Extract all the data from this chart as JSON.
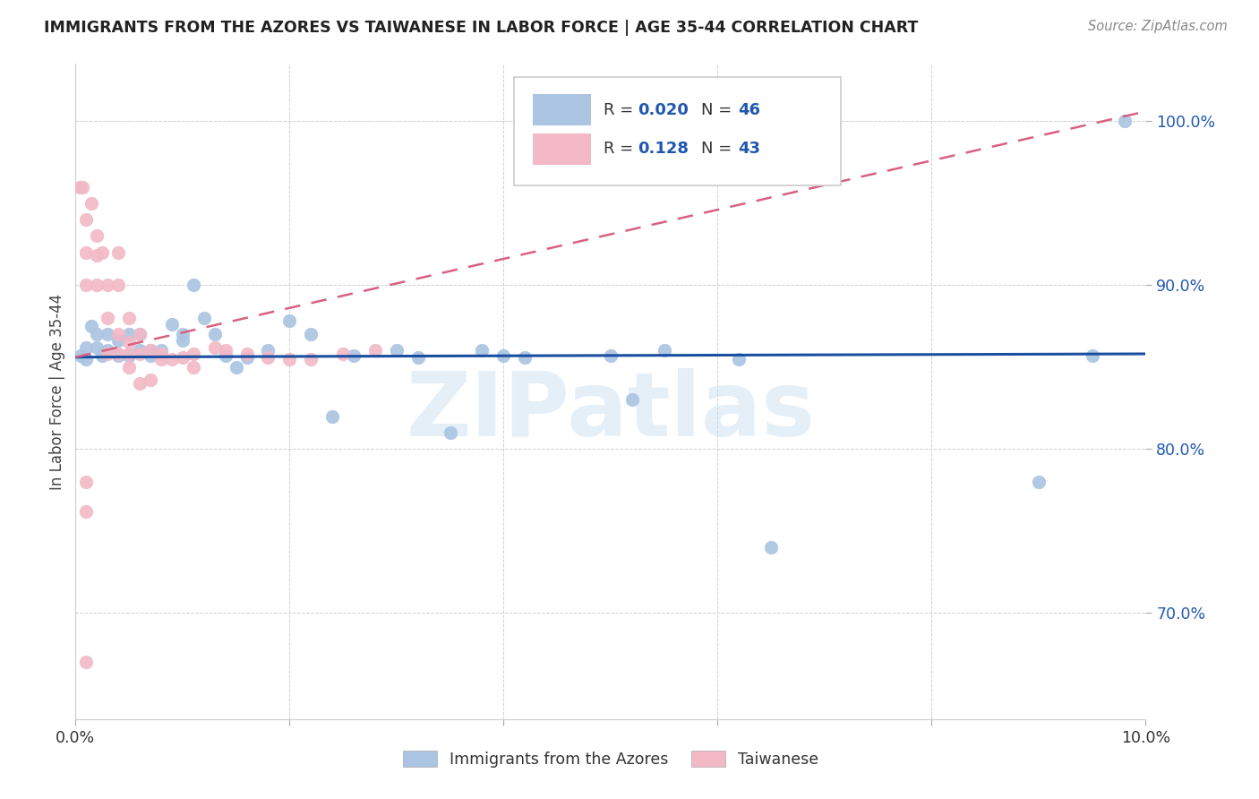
{
  "title": "IMMIGRANTS FROM THE AZORES VS TAIWANESE IN LABOR FORCE | AGE 35-44 CORRELATION CHART",
  "source": "Source: ZipAtlas.com",
  "ylabel": "In Labor Force | Age 35-44",
  "xlim": [
    0.0,
    0.1
  ],
  "ylim": [
    0.635,
    1.035
  ],
  "yticks": [
    0.7,
    0.8,
    0.9,
    1.0
  ],
  "ytick_labels": [
    "70.0%",
    "80.0%",
    "90.0%",
    "100.0%"
  ],
  "xticks": [
    0.0,
    0.02,
    0.04,
    0.06,
    0.08,
    0.1
  ],
  "xtick_labels": [
    "0.0%",
    "",
    "",
    "",
    "",
    "10.0%"
  ],
  "legend_azores_R": "0.020",
  "legend_azores_N": "46",
  "legend_taiwanese_R": "0.128",
  "legend_taiwanese_N": "43",
  "azores_color": "#aac4e2",
  "taiwanese_color": "#f2b8c6",
  "azores_line_color": "#1a4fa0",
  "taiwanese_line_color": "#d96080",
  "azores_x": [
    0.0005,
    0.001,
    0.001,
    0.0015,
    0.002,
    0.002,
    0.0025,
    0.003,
    0.003,
    0.004,
    0.004,
    0.005,
    0.005,
    0.006,
    0.006,
    0.007,
    0.007,
    0.008,
    0.009,
    0.01,
    0.01,
    0.011,
    0.012,
    0.013,
    0.014,
    0.015,
    0.016,
    0.018,
    0.02,
    0.022,
    0.024,
    0.026,
    0.03,
    0.032,
    0.035,
    0.038,
    0.04,
    0.042,
    0.05,
    0.052,
    0.055,
    0.062,
    0.065,
    0.09,
    0.095,
    0.098
  ],
  "azores_y": [
    0.857,
    0.862,
    0.855,
    0.875,
    0.862,
    0.87,
    0.857,
    0.86,
    0.87,
    0.857,
    0.866,
    0.857,
    0.87,
    0.86,
    0.87,
    0.857,
    0.86,
    0.86,
    0.876,
    0.866,
    0.87,
    0.9,
    0.88,
    0.87,
    0.857,
    0.85,
    0.856,
    0.86,
    0.878,
    0.87,
    0.82,
    0.857,
    0.86,
    0.856,
    0.81,
    0.86,
    0.857,
    0.856,
    0.857,
    0.83,
    0.86,
    0.855,
    0.74,
    0.78,
    0.857,
    1.0
  ],
  "taiwanese_x": [
    0.0004,
    0.0006,
    0.001,
    0.001,
    0.001,
    0.0015,
    0.002,
    0.002,
    0.002,
    0.0025,
    0.003,
    0.003,
    0.003,
    0.004,
    0.004,
    0.004,
    0.004,
    0.005,
    0.005,
    0.005,
    0.005,
    0.006,
    0.006,
    0.006,
    0.007,
    0.007,
    0.008,
    0.008,
    0.009,
    0.01,
    0.011,
    0.011,
    0.013,
    0.014,
    0.016,
    0.018,
    0.02,
    0.022,
    0.025,
    0.028,
    0.001,
    0.001,
    0.001
  ],
  "taiwanese_y": [
    0.96,
    0.96,
    0.94,
    0.92,
    0.9,
    0.95,
    0.93,
    0.918,
    0.9,
    0.92,
    0.9,
    0.88,
    0.858,
    0.92,
    0.9,
    0.87,
    0.858,
    0.88,
    0.865,
    0.858,
    0.85,
    0.87,
    0.858,
    0.84,
    0.86,
    0.842,
    0.858,
    0.855,
    0.855,
    0.856,
    0.858,
    0.85,
    0.862,
    0.86,
    0.858,
    0.856,
    0.855,
    0.855,
    0.858,
    0.86,
    0.67,
    0.78,
    0.762
  ],
  "watermark_text": "ZIPatlas"
}
